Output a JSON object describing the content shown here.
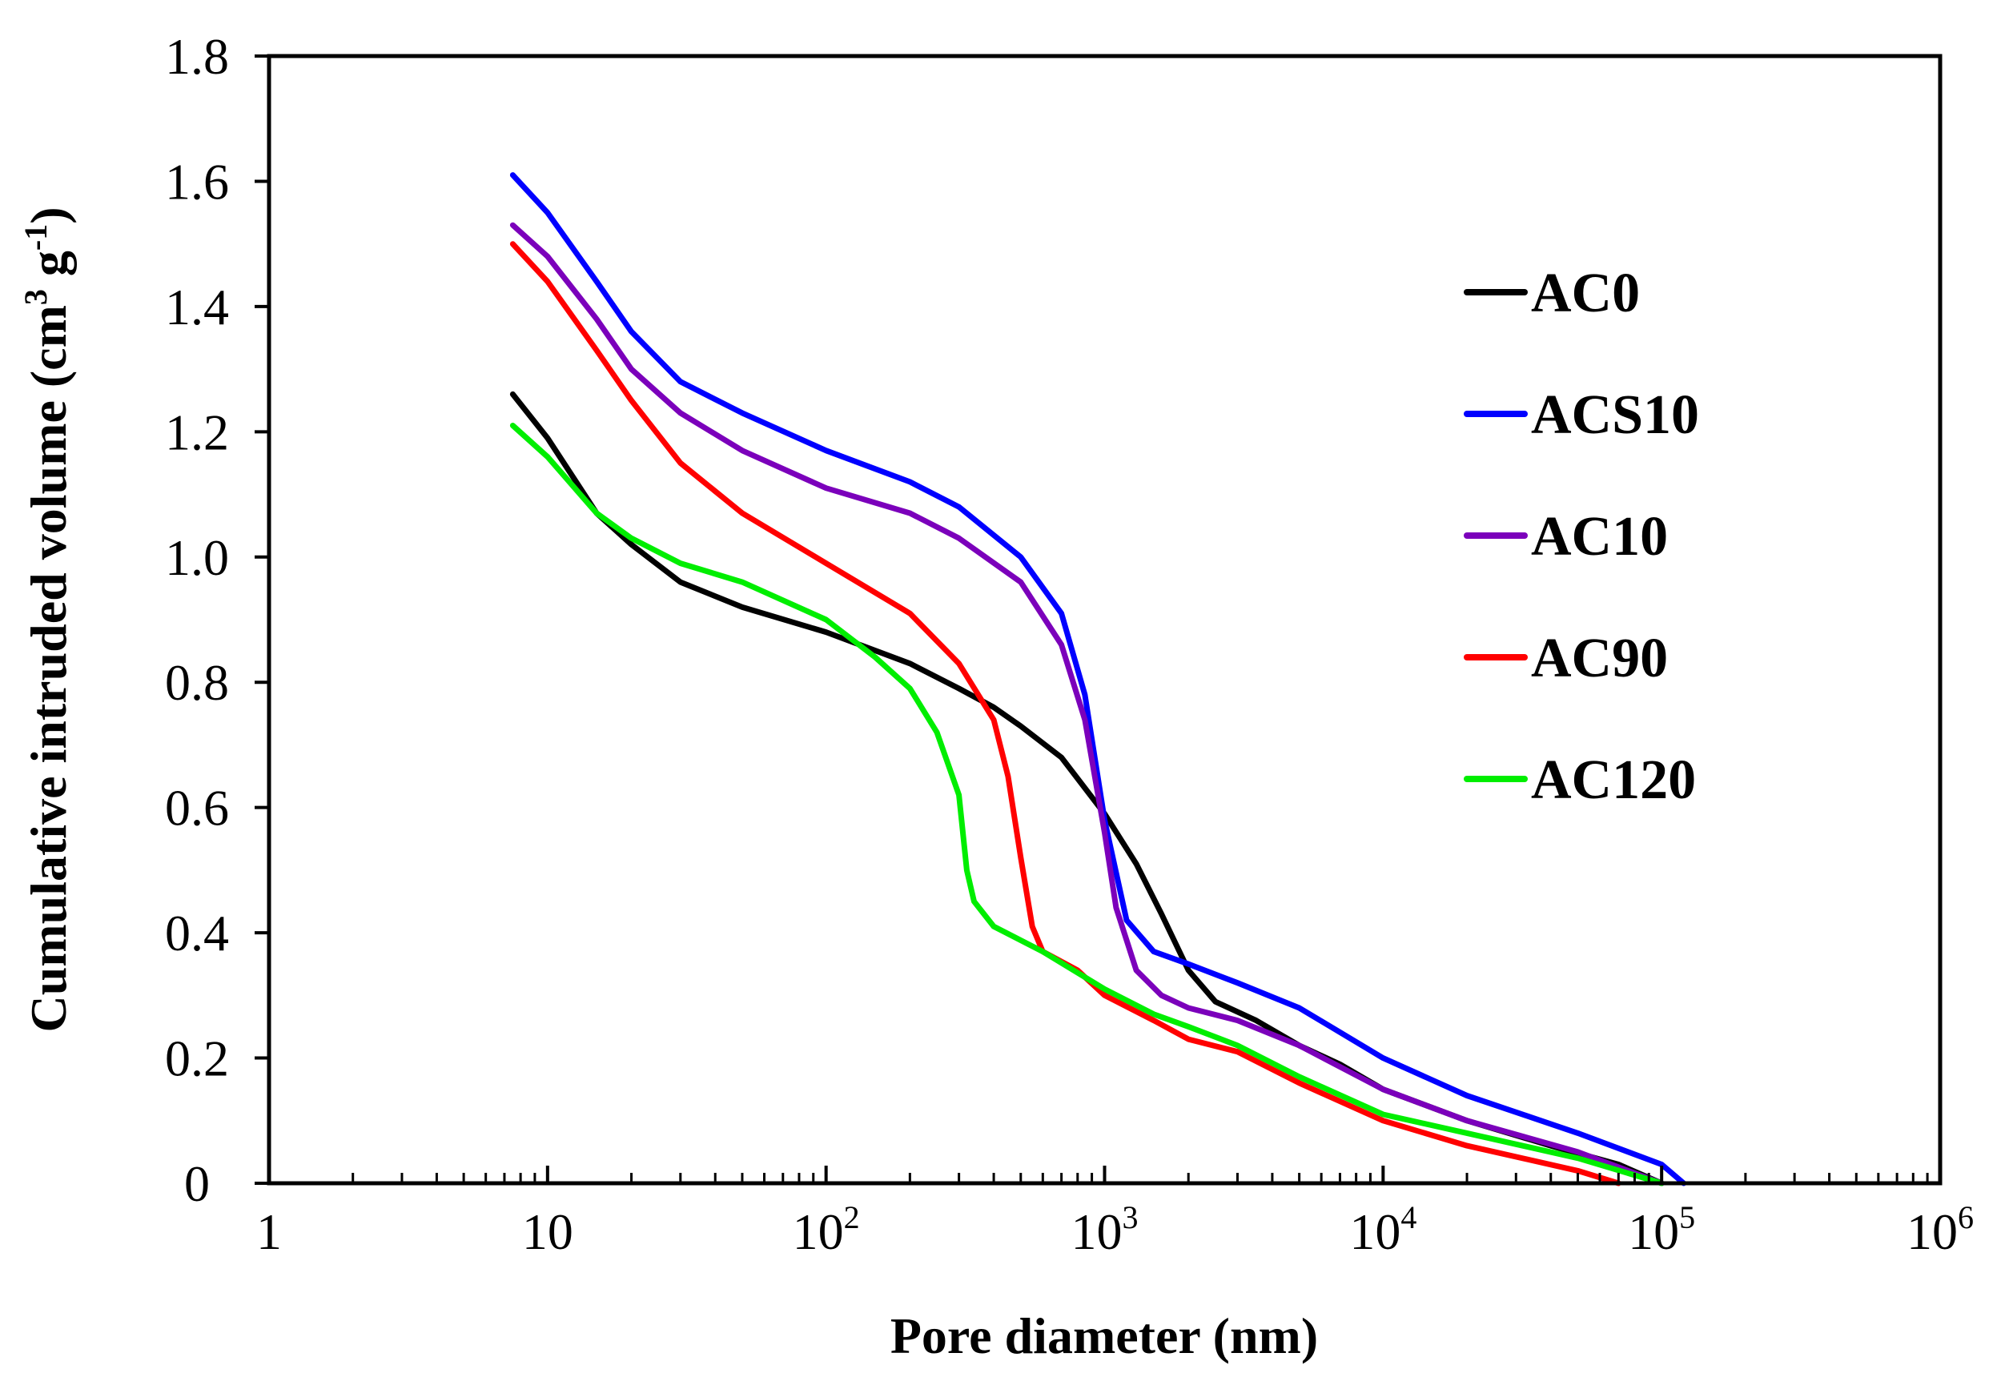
{
  "chart_data": {
    "type": "line",
    "title": "",
    "xlabel": "Pore diameter (nm)",
    "ylabel": {
      "main": "Cumulative intruded  volume (cm",
      "sup1": "3",
      "mid": " g",
      "sup2": "-1",
      "end": ")"
    },
    "x_scale": "log",
    "xlim": [
      1,
      1000000
    ],
    "ylim": [
      0,
      1.8
    ],
    "y_ticks": [
      "0",
      "0.2",
      "0.4",
      "0.6",
      "0.8",
      "1.0",
      "1.2",
      "1.4",
      "1.6",
      "1.8"
    ],
    "x_ticks": [
      {
        "base": "1",
        "exp": ""
      },
      {
        "base": "10",
        "exp": ""
      },
      {
        "base": "10",
        "exp": "2"
      },
      {
        "base": "10",
        "exp": "3"
      },
      {
        "base": "10",
        "exp": "4"
      },
      {
        "base": "10",
        "exp": "5"
      },
      {
        "base": "10",
        "exp": "6"
      }
    ],
    "legend_position": "right",
    "series": [
      {
        "name": "AC0",
        "color": "#000000",
        "points": [
          [
            7.5,
            1.26
          ],
          [
            10,
            1.19
          ],
          [
            15,
            1.07
          ],
          [
            20,
            1.02
          ],
          [
            30,
            0.96
          ],
          [
            50,
            0.92
          ],
          [
            100,
            0.88
          ],
          [
            200,
            0.83
          ],
          [
            300,
            0.79
          ],
          [
            400,
            0.76
          ],
          [
            500,
            0.73
          ],
          [
            700,
            0.68
          ],
          [
            1000,
            0.59
          ],
          [
            1300,
            0.51
          ],
          [
            1600,
            0.43
          ],
          [
            2000,
            0.34
          ],
          [
            2500,
            0.29
          ],
          [
            3500,
            0.26
          ],
          [
            5000,
            0.22
          ],
          [
            7000,
            0.19
          ],
          [
            10000,
            0.15
          ],
          [
            20000,
            0.1
          ],
          [
            40000,
            0.06
          ],
          [
            70000,
            0.03
          ],
          [
            100000,
            0.0
          ]
        ]
      },
      {
        "name": "ACS10",
        "color": "#0000ff",
        "points": [
          [
            7.5,
            1.61
          ],
          [
            10,
            1.55
          ],
          [
            15,
            1.44
          ],
          [
            20,
            1.36
          ],
          [
            30,
            1.28
          ],
          [
            50,
            1.23
          ],
          [
            100,
            1.17
          ],
          [
            200,
            1.12
          ],
          [
            300,
            1.08
          ],
          [
            500,
            1.0
          ],
          [
            700,
            0.91
          ],
          [
            850,
            0.78
          ],
          [
            1000,
            0.58
          ],
          [
            1200,
            0.42
          ],
          [
            1500,
            0.37
          ],
          [
            2000,
            0.35
          ],
          [
            3000,
            0.32
          ],
          [
            5000,
            0.28
          ],
          [
            10000,
            0.2
          ],
          [
            20000,
            0.14
          ],
          [
            50000,
            0.08
          ],
          [
            100000,
            0.03
          ],
          [
            120000,
            0.0
          ]
        ]
      },
      {
        "name": "AC10",
        "color": "#7b00bb",
        "points": [
          [
            7.5,
            1.53
          ],
          [
            10,
            1.48
          ],
          [
            15,
            1.38
          ],
          [
            20,
            1.3
          ],
          [
            30,
            1.23
          ],
          [
            50,
            1.17
          ],
          [
            100,
            1.11
          ],
          [
            200,
            1.07
          ],
          [
            300,
            1.03
          ],
          [
            500,
            0.96
          ],
          [
            700,
            0.86
          ],
          [
            850,
            0.74
          ],
          [
            1000,
            0.56
          ],
          [
            1100,
            0.44
          ],
          [
            1300,
            0.34
          ],
          [
            1600,
            0.3
          ],
          [
            2000,
            0.28
          ],
          [
            3000,
            0.26
          ],
          [
            5000,
            0.22
          ],
          [
            10000,
            0.15
          ],
          [
            20000,
            0.1
          ],
          [
            50000,
            0.05
          ],
          [
            100000,
            0.0
          ]
        ]
      },
      {
        "name": "AC90",
        "color": "#ff0000",
        "points": [
          [
            7.5,
            1.5
          ],
          [
            10,
            1.44
          ],
          [
            15,
            1.33
          ],
          [
            20,
            1.25
          ],
          [
            30,
            1.15
          ],
          [
            50,
            1.07
          ],
          [
            100,
            0.99
          ],
          [
            200,
            0.91
          ],
          [
            300,
            0.83
          ],
          [
            400,
            0.74
          ],
          [
            450,
            0.65
          ],
          [
            500,
            0.52
          ],
          [
            550,
            0.41
          ],
          [
            600,
            0.37
          ],
          [
            800,
            0.34
          ],
          [
            1000,
            0.3
          ],
          [
            1500,
            0.26
          ],
          [
            2000,
            0.23
          ],
          [
            3000,
            0.21
          ],
          [
            5000,
            0.16
          ],
          [
            10000,
            0.1
          ],
          [
            20000,
            0.06
          ],
          [
            50000,
            0.02
          ],
          [
            70000,
            0.0
          ]
        ]
      },
      {
        "name": "AC120",
        "color": "#00ee00",
        "points": [
          [
            7.5,
            1.21
          ],
          [
            10,
            1.16
          ],
          [
            15,
            1.07
          ],
          [
            20,
            1.03
          ],
          [
            30,
            0.99
          ],
          [
            50,
            0.96
          ],
          [
            100,
            0.9
          ],
          [
            150,
            0.84
          ],
          [
            200,
            0.79
          ],
          [
            250,
            0.72
          ],
          [
            300,
            0.62
          ],
          [
            320,
            0.5
          ],
          [
            340,
            0.45
          ],
          [
            400,
            0.41
          ],
          [
            600,
            0.37
          ],
          [
            1000,
            0.31
          ],
          [
            1500,
            0.27
          ],
          [
            2000,
            0.25
          ],
          [
            3000,
            0.22
          ],
          [
            5000,
            0.17
          ],
          [
            10000,
            0.11
          ],
          [
            20000,
            0.08
          ],
          [
            50000,
            0.04
          ],
          [
            100000,
            0.0
          ]
        ]
      }
    ]
  }
}
